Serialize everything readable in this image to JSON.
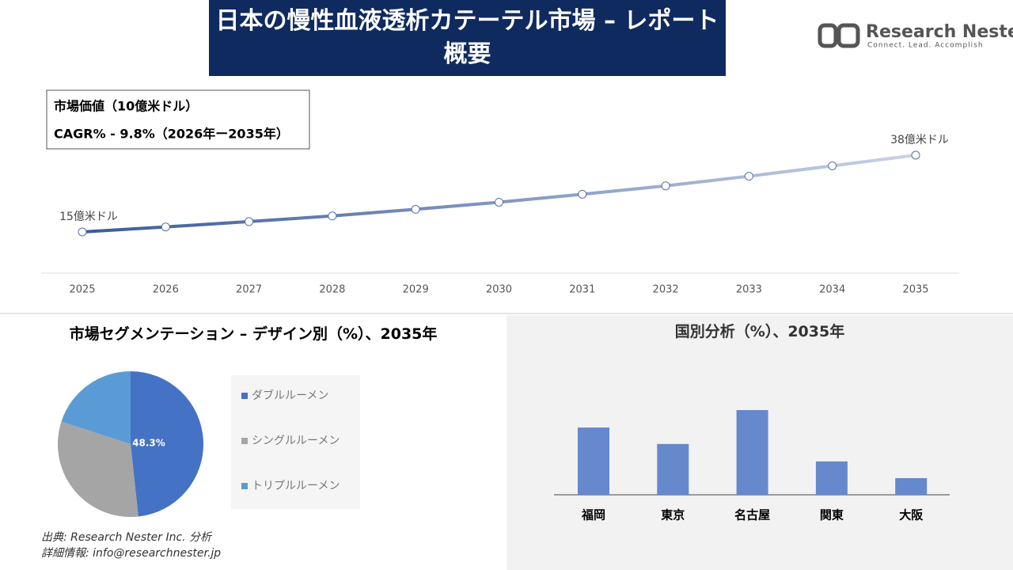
{
  "header": {
    "title": "日本の慢性血液透析カテーテル市場 – レポート概要"
  },
  "logo": {
    "name": "Research Nester",
    "tagline": "Connect. Lead. Accomplish"
  },
  "info_box": {
    "line1": "市場価値（10億米ドル）",
    "line2": "CAGR% - 9.8%（2026年ー2035年）"
  },
  "chart_data": [
    {
      "type": "line",
      "x": [
        2025,
        2026,
        2027,
        2028,
        2029,
        2030,
        2031,
        2032,
        2033,
        2034,
        2035
      ],
      "values": [
        1.5,
        1.65,
        1.81,
        1.98,
        2.18,
        2.39,
        2.63,
        2.88,
        3.17,
        3.48,
        3.8
      ],
      "value_labels": [
        "15億米ドル",
        null,
        null,
        null,
        null,
        null,
        null,
        null,
        null,
        null,
        "38億米ドル"
      ],
      "color": "#3f5f9f"
    },
    {
      "type": "pie",
      "title": "市場セグメンテーション – デザイン別（%）、2035年",
      "categories": [
        "ダブルルーメン",
        "シングルルーメン",
        "トリプルルーメン"
      ],
      "values": [
        48.3,
        31.7,
        20
      ],
      "value_labels": [
        "48.3%",
        null,
        null
      ],
      "colors": [
        "#4472c4",
        "#a5a5a5",
        "#5b9bd5"
      ]
    },
    {
      "type": "bar",
      "title": "国別分析（%）、2035年",
      "categories": [
        "福岡",
        "東京",
        "名古屋",
        "関東",
        "大阪"
      ],
      "values": [
        26.6,
        20.1,
        33.5,
        13.2,
        6.6
      ],
      "color": "#6688cc"
    }
  ],
  "footer": {
    "source": "出典: Research Nester Inc. 分析",
    "contact": "詳細情報: info@researchnester.jp"
  }
}
